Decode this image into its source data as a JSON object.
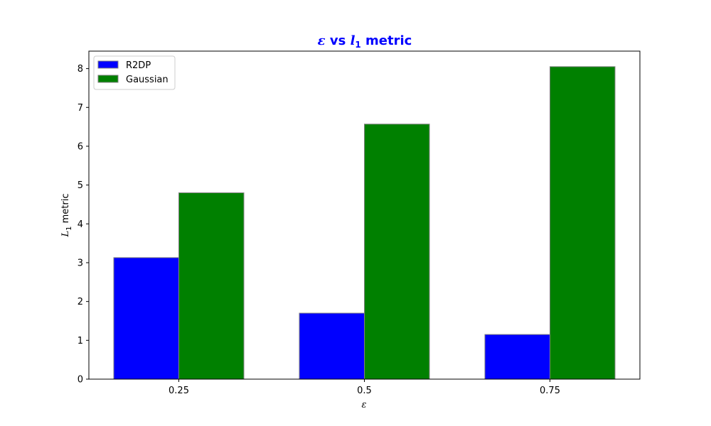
{
  "chart_data": {
    "type": "bar",
    "title": {
      "prefix": "ε",
      "middle": " vs ",
      "var": "l",
      "sub": "1",
      "suffix": " metric"
    },
    "xlabel": "ε",
    "ylabel": {
      "var": "L",
      "sub": "1",
      "suffix": " metric"
    },
    "categories": [
      "0.25",
      "0.5",
      "0.75"
    ],
    "series": [
      {
        "name": "R2DP",
        "values": [
          3.13,
          1.7,
          1.15
        ],
        "color": "#0000ff"
      },
      {
        "name": "Gaussian",
        "values": [
          4.8,
          6.57,
          8.05
        ],
        "color": "#008000"
      }
    ],
    "ylim": [
      0,
      8.45
    ],
    "yticks": [
      "0",
      "1",
      "2",
      "3",
      "4",
      "5",
      "6",
      "7",
      "8"
    ],
    "grid": false,
    "legend_position": "top-left",
    "title_color": "#0000ff",
    "bar_edge_color": "#808080"
  }
}
